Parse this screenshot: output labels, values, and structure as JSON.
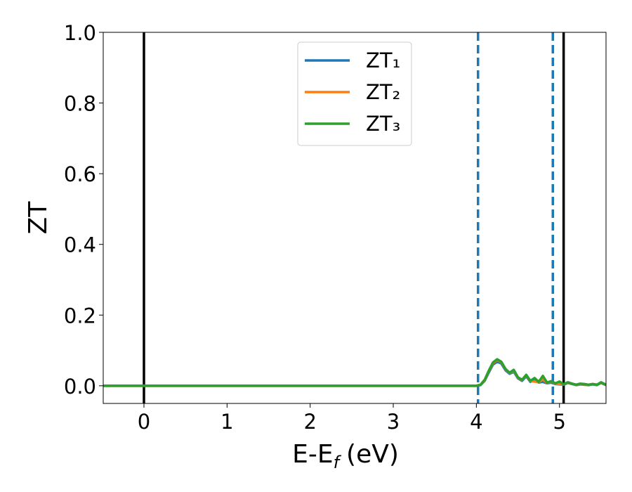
{
  "chart_data": {
    "type": "line",
    "xlabel": {
      "main": "E-E",
      "sub": "f",
      "unit": "(eV)"
    },
    "ylabel": "ZT",
    "x": [
      -0.49,
      4.0,
      4.05,
      4.1,
      4.15,
      4.2,
      4.25,
      4.3,
      4.35,
      4.4,
      4.45,
      4.5,
      4.55,
      4.6,
      4.65,
      4.7,
      4.75,
      4.8,
      4.85,
      4.9,
      4.95,
      5.0,
      5.05,
      5.1,
      5.15,
      5.2,
      5.25,
      5.3,
      5.35,
      5.4,
      5.45,
      5.5,
      5.56
    ],
    "series": [
      {
        "name": "ZT₁",
        "color": "#1f77b4",
        "values": [
          0,
          0,
          0.002,
          0.014,
          0.038,
          0.06,
          0.068,
          0.063,
          0.044,
          0.034,
          0.04,
          0.021,
          0.014,
          0.027,
          0.011,
          0.019,
          0.009,
          0.011,
          0.007,
          0.009,
          0.005,
          0.004,
          0.003,
          0.008,
          0.005,
          0.002,
          0.004,
          0.003,
          0.002,
          0.004,
          0.002,
          0.008,
          0.002
        ]
      },
      {
        "name": "ZT₂",
        "color": "#ff7f0e",
        "values": [
          0,
          0,
          0.003,
          0.016,
          0.042,
          0.064,
          0.073,
          0.067,
          0.047,
          0.036,
          0.043,
          0.023,
          0.016,
          0.03,
          0.013,
          0.012,
          0.01,
          0.018,
          0.008,
          0.012,
          0.006,
          0.005,
          0.004,
          0.009,
          0.006,
          0.003,
          0.005,
          0.004,
          0.003,
          0.005,
          0.003,
          0.009,
          0.003
        ]
      },
      {
        "name": "ZT₃",
        "color": "#2ca02c",
        "values": [
          0,
          0,
          0.003,
          0.017,
          0.043,
          0.066,
          0.075,
          0.068,
          0.048,
          0.037,
          0.045,
          0.024,
          0.017,
          0.031,
          0.014,
          0.022,
          0.011,
          0.028,
          0.009,
          0.013,
          0.007,
          0.012,
          0.004,
          0.01,
          0.006,
          0.003,
          0.006,
          0.005,
          0.003,
          0.005,
          0.003,
          0.01,
          0.003
        ]
      }
    ],
    "vlines": [
      {
        "x": 0,
        "color": "#000000",
        "style": "solid"
      },
      {
        "x": 5.05,
        "color": "#000000",
        "style": "solid"
      },
      {
        "x": 4.02,
        "color": "#1f77b4",
        "style": "dashed"
      },
      {
        "x": 4.92,
        "color": "#1f77b4",
        "style": "dashed"
      }
    ],
    "xlim": [
      -0.49,
      5.56
    ],
    "ylim": [
      -0.05,
      1.0
    ],
    "xticks": [
      0,
      1,
      2,
      3,
      4,
      5
    ],
    "yticks": [
      {
        "value": 0,
        "label": "0.0"
      },
      {
        "value": 0.2,
        "label": "0.2"
      },
      {
        "value": 0.4,
        "label": "0.4"
      },
      {
        "value": 0.6,
        "label": "0.6"
      },
      {
        "value": 0.8,
        "label": "0.8"
      },
      {
        "value": 1,
        "label": "1.0"
      }
    ],
    "legend": "upper center"
  }
}
